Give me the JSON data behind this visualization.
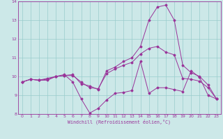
{
  "xlabel": "Windchill (Refroidissement éolien,°C)",
  "xlim": [
    -0.5,
    23.5
  ],
  "ylim": [
    8,
    14
  ],
  "yticks": [
    8,
    9,
    10,
    11,
    12,
    13,
    14
  ],
  "xticks": [
    0,
    1,
    2,
    3,
    4,
    5,
    6,
    7,
    8,
    9,
    10,
    11,
    12,
    13,
    14,
    15,
    16,
    17,
    18,
    19,
    20,
    21,
    22,
    23
  ],
  "bg_color": "#cce8e8",
  "line_color": "#993399",
  "grid_color": "#99cccc",
  "lines": [
    {
      "x": [
        0,
        1,
        2,
        3,
        4,
        5,
        6,
        7,
        8,
        9,
        10,
        11,
        12,
        13,
        14,
        15,
        16,
        17,
        18,
        19,
        20,
        21,
        22,
        23
      ],
      "y": [
        9.7,
        9.85,
        9.8,
        9.8,
        10.0,
        10.1,
        9.7,
        8.8,
        8.05,
        8.3,
        8.75,
        9.1,
        9.15,
        9.25,
        10.8,
        9.1,
        9.4,
        9.4,
        9.3,
        9.2,
        10.3,
        9.95,
        9.0,
        8.8
      ]
    },
    {
      "x": [
        0,
        1,
        2,
        3,
        4,
        5,
        6,
        7,
        8,
        9,
        10,
        11,
        12,
        13,
        14,
        15,
        16,
        17,
        18,
        19,
        20,
        21,
        22,
        23
      ],
      "y": [
        9.7,
        9.85,
        9.8,
        9.9,
        10.0,
        10.05,
        10.1,
        9.6,
        9.5,
        9.3,
        10.3,
        10.5,
        10.8,
        11.0,
        11.6,
        13.0,
        13.7,
        13.8,
        13.0,
        10.6,
        10.2,
        10.0,
        9.55,
        8.8
      ]
    },
    {
      "x": [
        0,
        1,
        2,
        3,
        4,
        5,
        6,
        7,
        8,
        9,
        10,
        11,
        12,
        13,
        14,
        15,
        16,
        17,
        18,
        19,
        20,
        21,
        22,
        23
      ],
      "y": [
        9.7,
        9.85,
        9.8,
        9.85,
        10.0,
        10.05,
        10.05,
        9.7,
        9.4,
        9.35,
        10.15,
        10.4,
        10.6,
        10.75,
        11.2,
        11.5,
        11.6,
        11.3,
        11.15,
        9.9,
        9.85,
        9.75,
        9.4,
        8.8
      ]
    }
  ]
}
